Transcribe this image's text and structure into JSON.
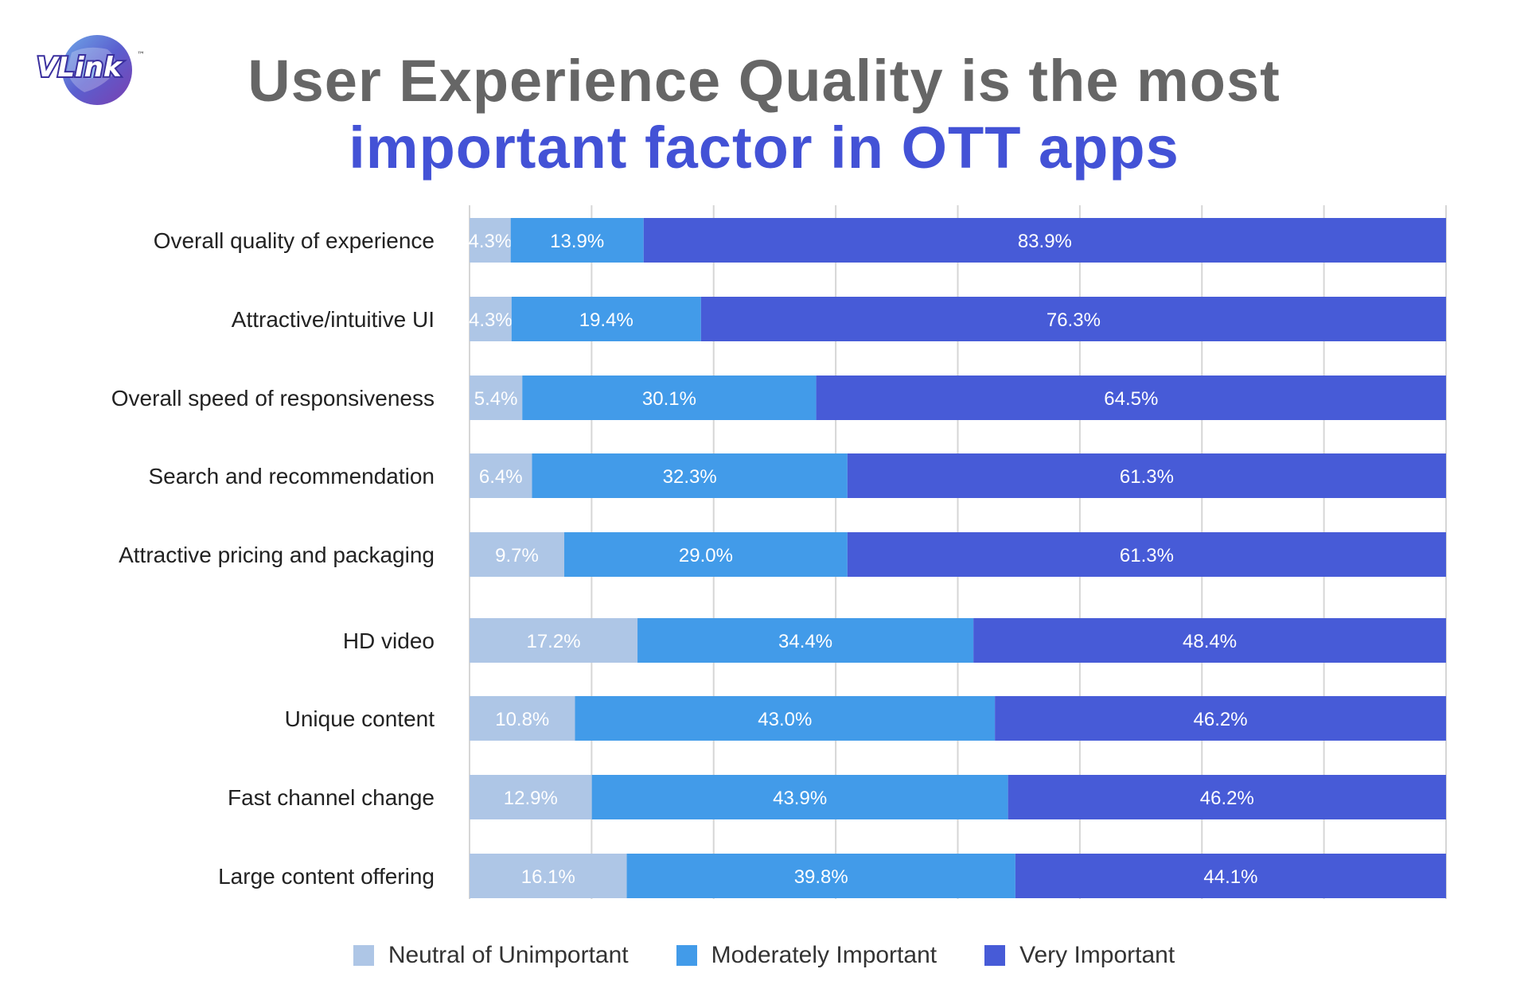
{
  "logo": {
    "text": "VLink",
    "tm": "™"
  },
  "title": {
    "line1": "User Experience Quality is the most",
    "line2": "important factor in OTT apps"
  },
  "colors": {
    "neutral": "#AEC6E6",
    "moderate": "#429BE9",
    "very": "#475BD7",
    "title_gray": "#666666",
    "title_blue": "#4352D6"
  },
  "chart_data": {
    "type": "bar",
    "orientation": "horizontal",
    "stacked": true,
    "categories": [
      "Overall quality of experience",
      "Attractive/intuitive UI",
      "Overall speed of responsiveness",
      "Search and recommendation",
      "Attractive pricing and packaging",
      "HD video",
      "Unique content",
      "Fast channel change",
      "Large content offering"
    ],
    "series": [
      {
        "name": "Neutral of Unimportant",
        "color": "#AEC6E6",
        "text_color": "#ffffff",
        "values": [
          4.3,
          4.3,
          5.4,
          6.4,
          9.7,
          17.2,
          10.8,
          12.9,
          16.1
        ],
        "labels": [
          "4.3%",
          "4.3%",
          "5.4%",
          "6.4%",
          "9.7%",
          "17.2%",
          "10.8%",
          "12.9%",
          "16.1%"
        ]
      },
      {
        "name": "Moderately Important",
        "color": "#429BE9",
        "text_color": "#ffffff",
        "values": [
          13.9,
          19.4,
          30.1,
          32.3,
          29.0,
          34.4,
          43.0,
          43.9,
          39.8
        ],
        "labels": [
          "13.9%",
          "19.4%",
          "30.1%",
          "32.3%",
          "29.0%",
          "34.4%",
          "43.0%",
          "43.9%",
          "39.8%"
        ]
      },
      {
        "name": "Very Important",
        "color": "#475BD7",
        "text_color": "#ffffff",
        "values": [
          83.9,
          76.3,
          64.5,
          61.3,
          61.3,
          48.4,
          46.2,
          46.2,
          44.1
        ],
        "labels": [
          "83.9%",
          "76.3%",
          "64.5%",
          "61.3%",
          "61.3%",
          "48.4%",
          "46.2%",
          "46.2%",
          "44.1%"
        ]
      }
    ],
    "xlim": [
      0,
      100
    ],
    "grid": true,
    "legend_position": "bottom"
  }
}
